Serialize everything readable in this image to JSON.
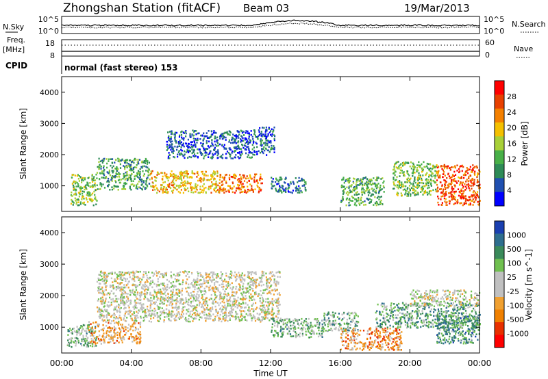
{
  "header": {
    "station": "Zhongshan Station (fitACF)",
    "beam": "Beam 03",
    "date": "19/Mar/2013"
  },
  "summary": {
    "left_labels": {
      "nsky": "N.Sky",
      "freq": "Freq.",
      "freq_unit": "[MHz]",
      "cpid": "CPID"
    },
    "right_labels": {
      "nsearch": "N.Search",
      "nave": "Nave"
    },
    "nsky_ticks": [
      "10^5",
      "10^0"
    ],
    "nsearch_ticks": [
      "10^5",
      "10^0"
    ],
    "freq_ticks": [
      "18",
      "8"
    ],
    "nave_ticks": [
      "60",
      "0"
    ],
    "cpid_text": "normal (fast stereo) 153"
  },
  "x_axis": {
    "label": "Time UT",
    "ticks": [
      "00:00",
      "04:00",
      "08:00",
      "12:00",
      "16:00",
      "20:00",
      "00:00"
    ]
  },
  "power_panel": {
    "ylabel": "Slant Range [km]",
    "yticks": [
      "1000",
      "2000",
      "3000",
      "4000"
    ],
    "colorbar_label": "Power [dB]",
    "colorbar_ticks": [
      "4",
      "8",
      "12",
      "16",
      "20",
      "24",
      "28"
    ]
  },
  "velocity_panel": {
    "ylabel": "Slant Range [km]",
    "yticks": [
      "1000",
      "2000",
      "3000",
      "4000"
    ],
    "colorbar_label": "Velocity [m s^-1]",
    "colorbar_ticks": [
      "1000",
      "500",
      "100",
      "25",
      "-25",
      "-100",
      "-500",
      "-1000"
    ]
  },
  "colors": {
    "power_scale": [
      "#0000ff",
      "#2050b0",
      "#2e8b57",
      "#48b048",
      "#a8d038",
      "#f4c000",
      "#f48000",
      "#e84000",
      "#ff0000"
    ],
    "velocity_scale": [
      "#1a3fb0",
      "#2e6e8e",
      "#3a8a5a",
      "#70c050",
      "#c0c0c0",
      "#c0c0c0",
      "#f0a030",
      "#f08000",
      "#e83000",
      "#ff0000"
    ]
  },
  "chart_data": [
    {
      "type": "heatmap",
      "title": "Power",
      "xlabel": "Time UT",
      "ylabel": "Slant Range [km]",
      "xlim": [
        0,
        24
      ],
      "ylim": [
        180,
        4500
      ],
      "zlabel": "Power [dB]",
      "zlim": [
        0,
        32
      ],
      "scatter_regions": [
        {
          "t": [
            0.5,
            2.0
          ],
          "r": [
            400,
            1400
          ],
          "level": 14
        },
        {
          "t": [
            2.0,
            5.0
          ],
          "r": [
            900,
            1900
          ],
          "level": 11
        },
        {
          "t": [
            5.0,
            9.0
          ],
          "r": [
            800,
            1500
          ],
          "level": 20
        },
        {
          "t": [
            9.0,
            11.5
          ],
          "r": [
            800,
            1400
          ],
          "level": 24
        },
        {
          "t": [
            6.0,
            11.0
          ],
          "r": [
            1900,
            2800
          ],
          "level": 6
        },
        {
          "t": [
            11.0,
            12.2
          ],
          "r": [
            2000,
            2900
          ],
          "level": 6
        },
        {
          "t": [
            12.0,
            14.0
          ],
          "r": [
            800,
            1300
          ],
          "level": 8
        },
        {
          "t": [
            16.0,
            18.5
          ],
          "r": [
            400,
            1300
          ],
          "level": 12
        },
        {
          "t": [
            19.0,
            21.5
          ],
          "r": [
            700,
            1800
          ],
          "level": 14
        },
        {
          "t": [
            21.5,
            24.0
          ],
          "r": [
            400,
            1700
          ],
          "level": 26
        }
      ]
    },
    {
      "type": "heatmap",
      "title": "Velocity",
      "xlabel": "Time UT",
      "ylabel": "Slant Range [km]",
      "xlim": [
        0,
        24
      ],
      "ylim": [
        180,
        4500
      ],
      "zlabel": "Velocity [m s^-1]",
      "zlim": [
        -1000,
        1000
      ],
      "scatter_regions": [
        {
          "t": [
            0.3,
            2.0
          ],
          "r": [
            400,
            1100
          ],
          "level": 300
        },
        {
          "t": [
            1.5,
            4.5
          ],
          "r": [
            500,
            1200
          ],
          "level": -300
        },
        {
          "t": [
            2.0,
            12.5
          ],
          "r": [
            1200,
            2800
          ],
          "level": 0
        },
        {
          "t": [
            12.0,
            15.0
          ],
          "r": [
            700,
            1300
          ],
          "level": 300
        },
        {
          "t": [
            15.0,
            17.0
          ],
          "r": [
            900,
            1500
          ],
          "level": 300
        },
        {
          "t": [
            16.0,
            19.5
          ],
          "r": [
            300,
            1000
          ],
          "level": -400
        },
        {
          "t": [
            18.0,
            24.0
          ],
          "r": [
            1000,
            1800
          ],
          "level": 400
        },
        {
          "t": [
            21.5,
            24.0
          ],
          "r": [
            500,
            1400
          ],
          "level": 500
        },
        {
          "t": [
            20.0,
            24.0
          ],
          "r": [
            1700,
            2200
          ],
          "level": 0
        }
      ]
    }
  ]
}
